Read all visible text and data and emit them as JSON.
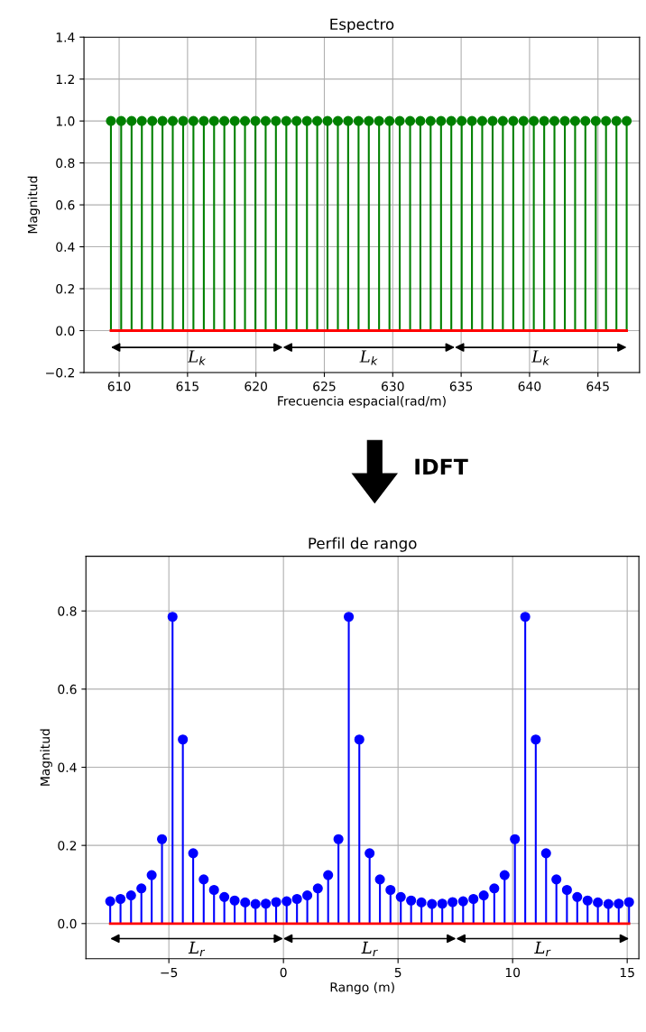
{
  "chart_data": [
    {
      "type": "lollipop",
      "title": "Espectro",
      "xlabel": "Frecuencia espacial(rad/m)",
      "ylabel": "Magnitud",
      "x": [
        609.4,
        610.15,
        610.91,
        611.66,
        612.42,
        613.17,
        613.92,
        614.68,
        615.43,
        616.19,
        616.94,
        617.69,
        618.45,
        619.2,
        619.96,
        620.71,
        621.46,
        622.22,
        622.97,
        623.73,
        624.48,
        625.23,
        625.99,
        626.74,
        627.5,
        628.25,
        629.0,
        629.76,
        630.51,
        631.27,
        632.02,
        632.77,
        633.53,
        634.28,
        635.04,
        635.79,
        636.54,
        637.3,
        638.05,
        638.81,
        639.56,
        640.31,
        641.07,
        641.82,
        642.58,
        643.33,
        644.08,
        644.84,
        645.59,
        646.35,
        647.1
      ],
      "series": [
        {
          "color": "#008000",
          "values": [
            1,
            1,
            1,
            1,
            1,
            1,
            1,
            1,
            1,
            1,
            1,
            1,
            1,
            1,
            1,
            1,
            1,
            1,
            1,
            1,
            1,
            1,
            1,
            1,
            1,
            1,
            1,
            1,
            1,
            1,
            1,
            1,
            1,
            1,
            1,
            1,
            1,
            1,
            1,
            1,
            1,
            1,
            1,
            1,
            1,
            1,
            1,
            1,
            1,
            1,
            1
          ]
        }
      ],
      "xlim": [
        607.43,
        648.04
      ],
      "ylim": [
        -0.2,
        1.4
      ],
      "xticks": [
        610,
        615,
        620,
        625,
        630,
        635,
        640,
        645
      ],
      "yticks": [
        {
          "value": -0.2,
          "label": "−0.2"
        },
        {
          "value": 0,
          "label": "0.0"
        },
        {
          "value": 0.2,
          "label": "0.2"
        },
        {
          "value": 0.4,
          "label": "0.4"
        },
        {
          "value": 0.6,
          "label": "0.6"
        },
        {
          "value": 0.8,
          "label": "0.8"
        },
        {
          "value": 1.0,
          "label": "1.0"
        },
        {
          "value": 1.2,
          "label": "1.2"
        },
        {
          "value": 1.4,
          "label": "1.4"
        }
      ],
      "ref_lines": [
        {
          "axis": "y",
          "value": 0,
          "color": "#ff0000"
        }
      ],
      "annotations": [
        "L$_{k}$",
        "L$_{k}$",
        "L$_{k}$"
      ],
      "grid": true,
      "marker": "circle"
    },
    {
      "type": "lollipop",
      "title": "Perfil de rango",
      "xlabel": "Rango (m)",
      "ylabel": "Magnitud",
      "x": [
        -7.56,
        -7.11,
        -6.65,
        -6.2,
        -5.75,
        -5.3,
        -4.84,
        -4.39,
        -3.94,
        -3.48,
        -3.03,
        -2.58,
        -2.13,
        -1.67,
        -1.22,
        -0.77,
        -0.32,
        0.14,
        0.59,
        1.04,
        1.5,
        1.95,
        2.4,
        2.85,
        3.31,
        3.76,
        4.21,
        4.67,
        5.12,
        5.57,
        6.02,
        6.48,
        6.93,
        7.38,
        7.84,
        8.29,
        8.74,
        9.2,
        9.65,
        10.1,
        10.55,
        11.01,
        11.46,
        11.91,
        12.37,
        12.82,
        13.27,
        13.72,
        14.18,
        14.63,
        15.08
      ],
      "series": [
        {
          "color": "#0000ff",
          "values": [
            0.057,
            0.063,
            0.072,
            0.09,
            0.124,
            0.216,
            0.785,
            0.471,
            0.18,
            0.113,
            0.086,
            0.068,
            0.059,
            0.054,
            0.05,
            0.051,
            0.055,
            0.057,
            0.063,
            0.072,
            0.09,
            0.124,
            0.216,
            0.785,
            0.471,
            0.18,
            0.113,
            0.086,
            0.068,
            0.059,
            0.054,
            0.05,
            0.051,
            0.055,
            0.057,
            0.063,
            0.072,
            0.09,
            0.124,
            0.216,
            0.785,
            0.471,
            0.18,
            0.113,
            0.086,
            0.068,
            0.059,
            0.054,
            0.05,
            0.051,
            0.055
          ]
        }
      ],
      "xlim": [
        -8.62,
        15.51
      ],
      "ylim": [
        -0.09,
        0.94
      ],
      "xticks": [
        {
          "value": -5,
          "label": "−5"
        },
        0,
        5,
        10,
        15
      ],
      "yticks": [
        {
          "value": 0,
          "label": "0.0"
        },
        {
          "value": 0.2,
          "label": "0.2"
        },
        {
          "value": 0.4,
          "label": "0.4"
        },
        {
          "value": 0.6,
          "label": "0.6"
        },
        {
          "value": 0.8,
          "label": "0.8"
        }
      ],
      "ref_lines": [
        {
          "axis": "y",
          "value": 0,
          "color": "#ff0000"
        }
      ],
      "annotations": [
        "IDFT",
        "L$_{r}$",
        "L$_{r}$",
        "L$_{r}$"
      ],
      "grid": true,
      "marker": "circle"
    }
  ]
}
